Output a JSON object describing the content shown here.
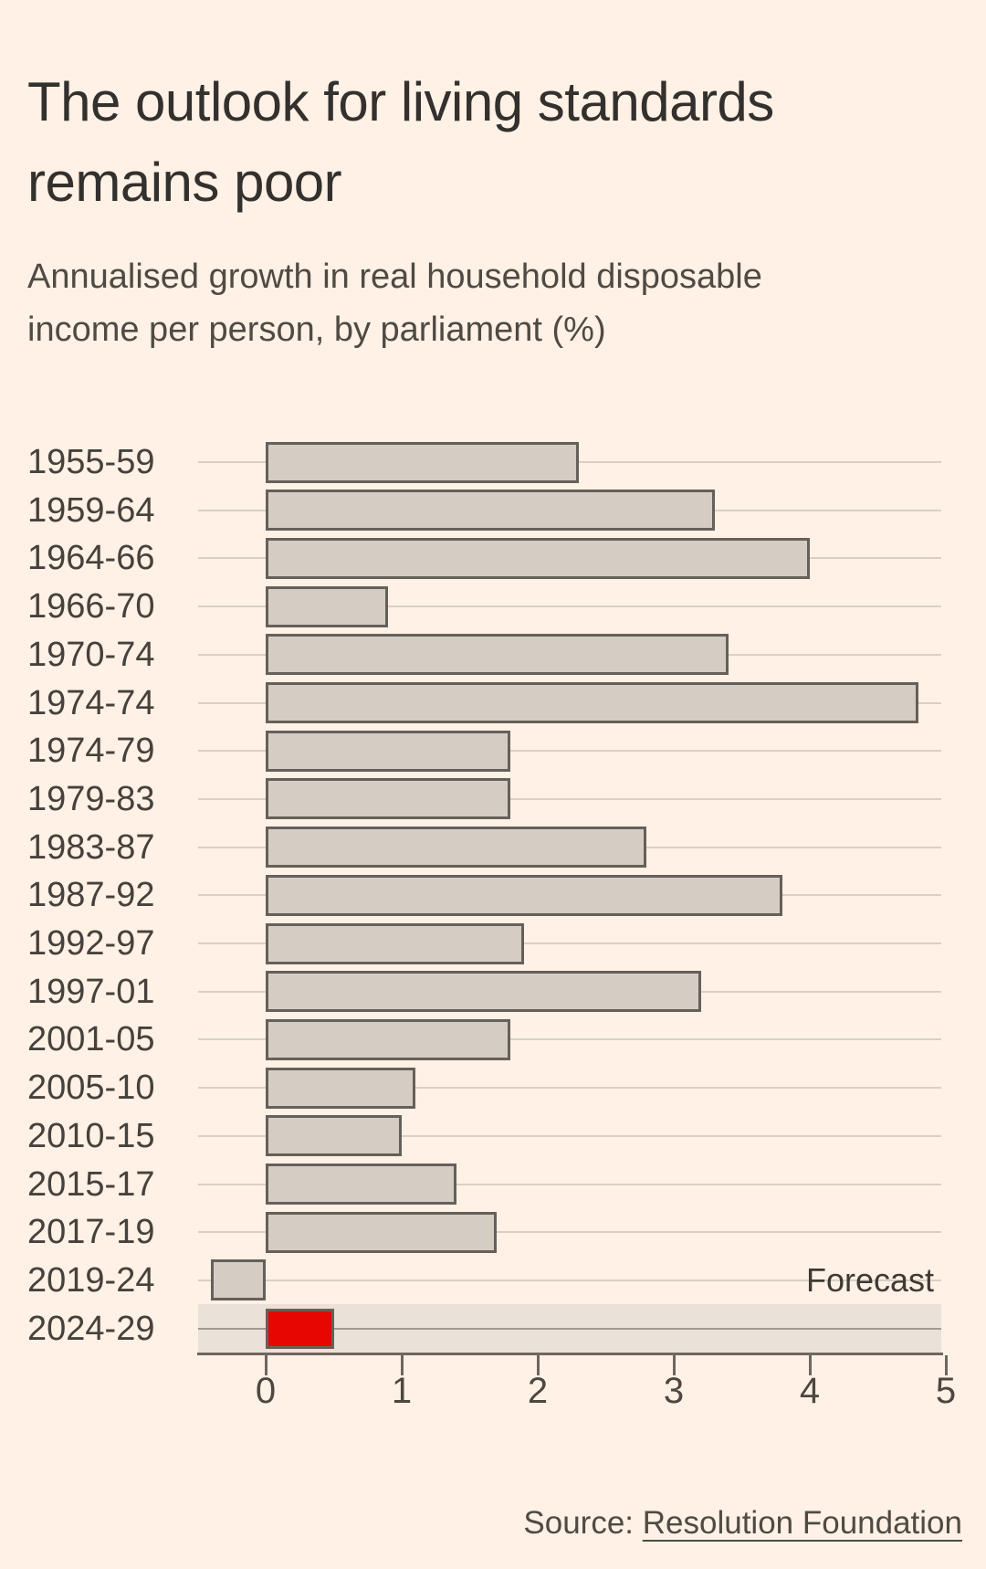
{
  "header": {
    "title": "The outlook for living standards remains poor",
    "title_lines": [
      "The outlook for living standards",
      "remains poor"
    ],
    "subtitle": "Annualised growth in real household disposable income per person, by parliament (%)",
    "subtitle_lines": [
      "Annualised growth in real household disposable",
      "income per person, by parliament (%)"
    ]
  },
  "chart_data": {
    "type": "bar",
    "orientation": "horizontal",
    "title": "The outlook for living standards remains poor",
    "subtitle": "Annualised growth in real household disposable income per person, by parliament (%)",
    "categories": [
      "1955-59",
      "1959-64",
      "1964-66",
      "1966-70",
      "1970-74",
      "1974-74",
      "1974-79",
      "1979-83",
      "1983-87",
      "1987-92",
      "1992-97",
      "1997-01",
      "2001-05",
      "2005-10",
      "2010-15",
      "2015-17",
      "2017-19",
      "2019-24",
      "2024-29"
    ],
    "values": [
      2.3,
      3.3,
      4.0,
      0.9,
      3.4,
      4.8,
      1.8,
      1.8,
      2.8,
      3.8,
      1.9,
      3.2,
      1.8,
      1.1,
      1.0,
      1.4,
      1.7,
      -0.4,
      0.5
    ],
    "xlabel": "",
    "ylabel": "",
    "xlim": [
      -0.5,
      5
    ],
    "x_ticks": [
      0,
      1,
      2,
      3,
      4,
      5
    ],
    "x_tick_labels": [
      "0",
      "1",
      "2",
      "3",
      "4",
      "5"
    ],
    "grid": true,
    "forecast": {
      "category": "2024-29",
      "label": "Forecast",
      "label_row": "2019-24",
      "band_behind_category": true
    },
    "colors": {
      "background": "#fff1e5",
      "bar_fill": "#d5ccc4",
      "bar_border": "#66605a",
      "forecast_bar_fill": "#e60800",
      "forecast_band": "#eae1d9",
      "gridline": "#d9cfc5",
      "band_gridline": "#a39a92",
      "axis_line": "#6e665f",
      "title_text": "#33302e",
      "muted_text": "#4f4a44"
    }
  },
  "footer": {
    "source_prefix": "Source: ",
    "source_link": "Resolution Foundation"
  }
}
